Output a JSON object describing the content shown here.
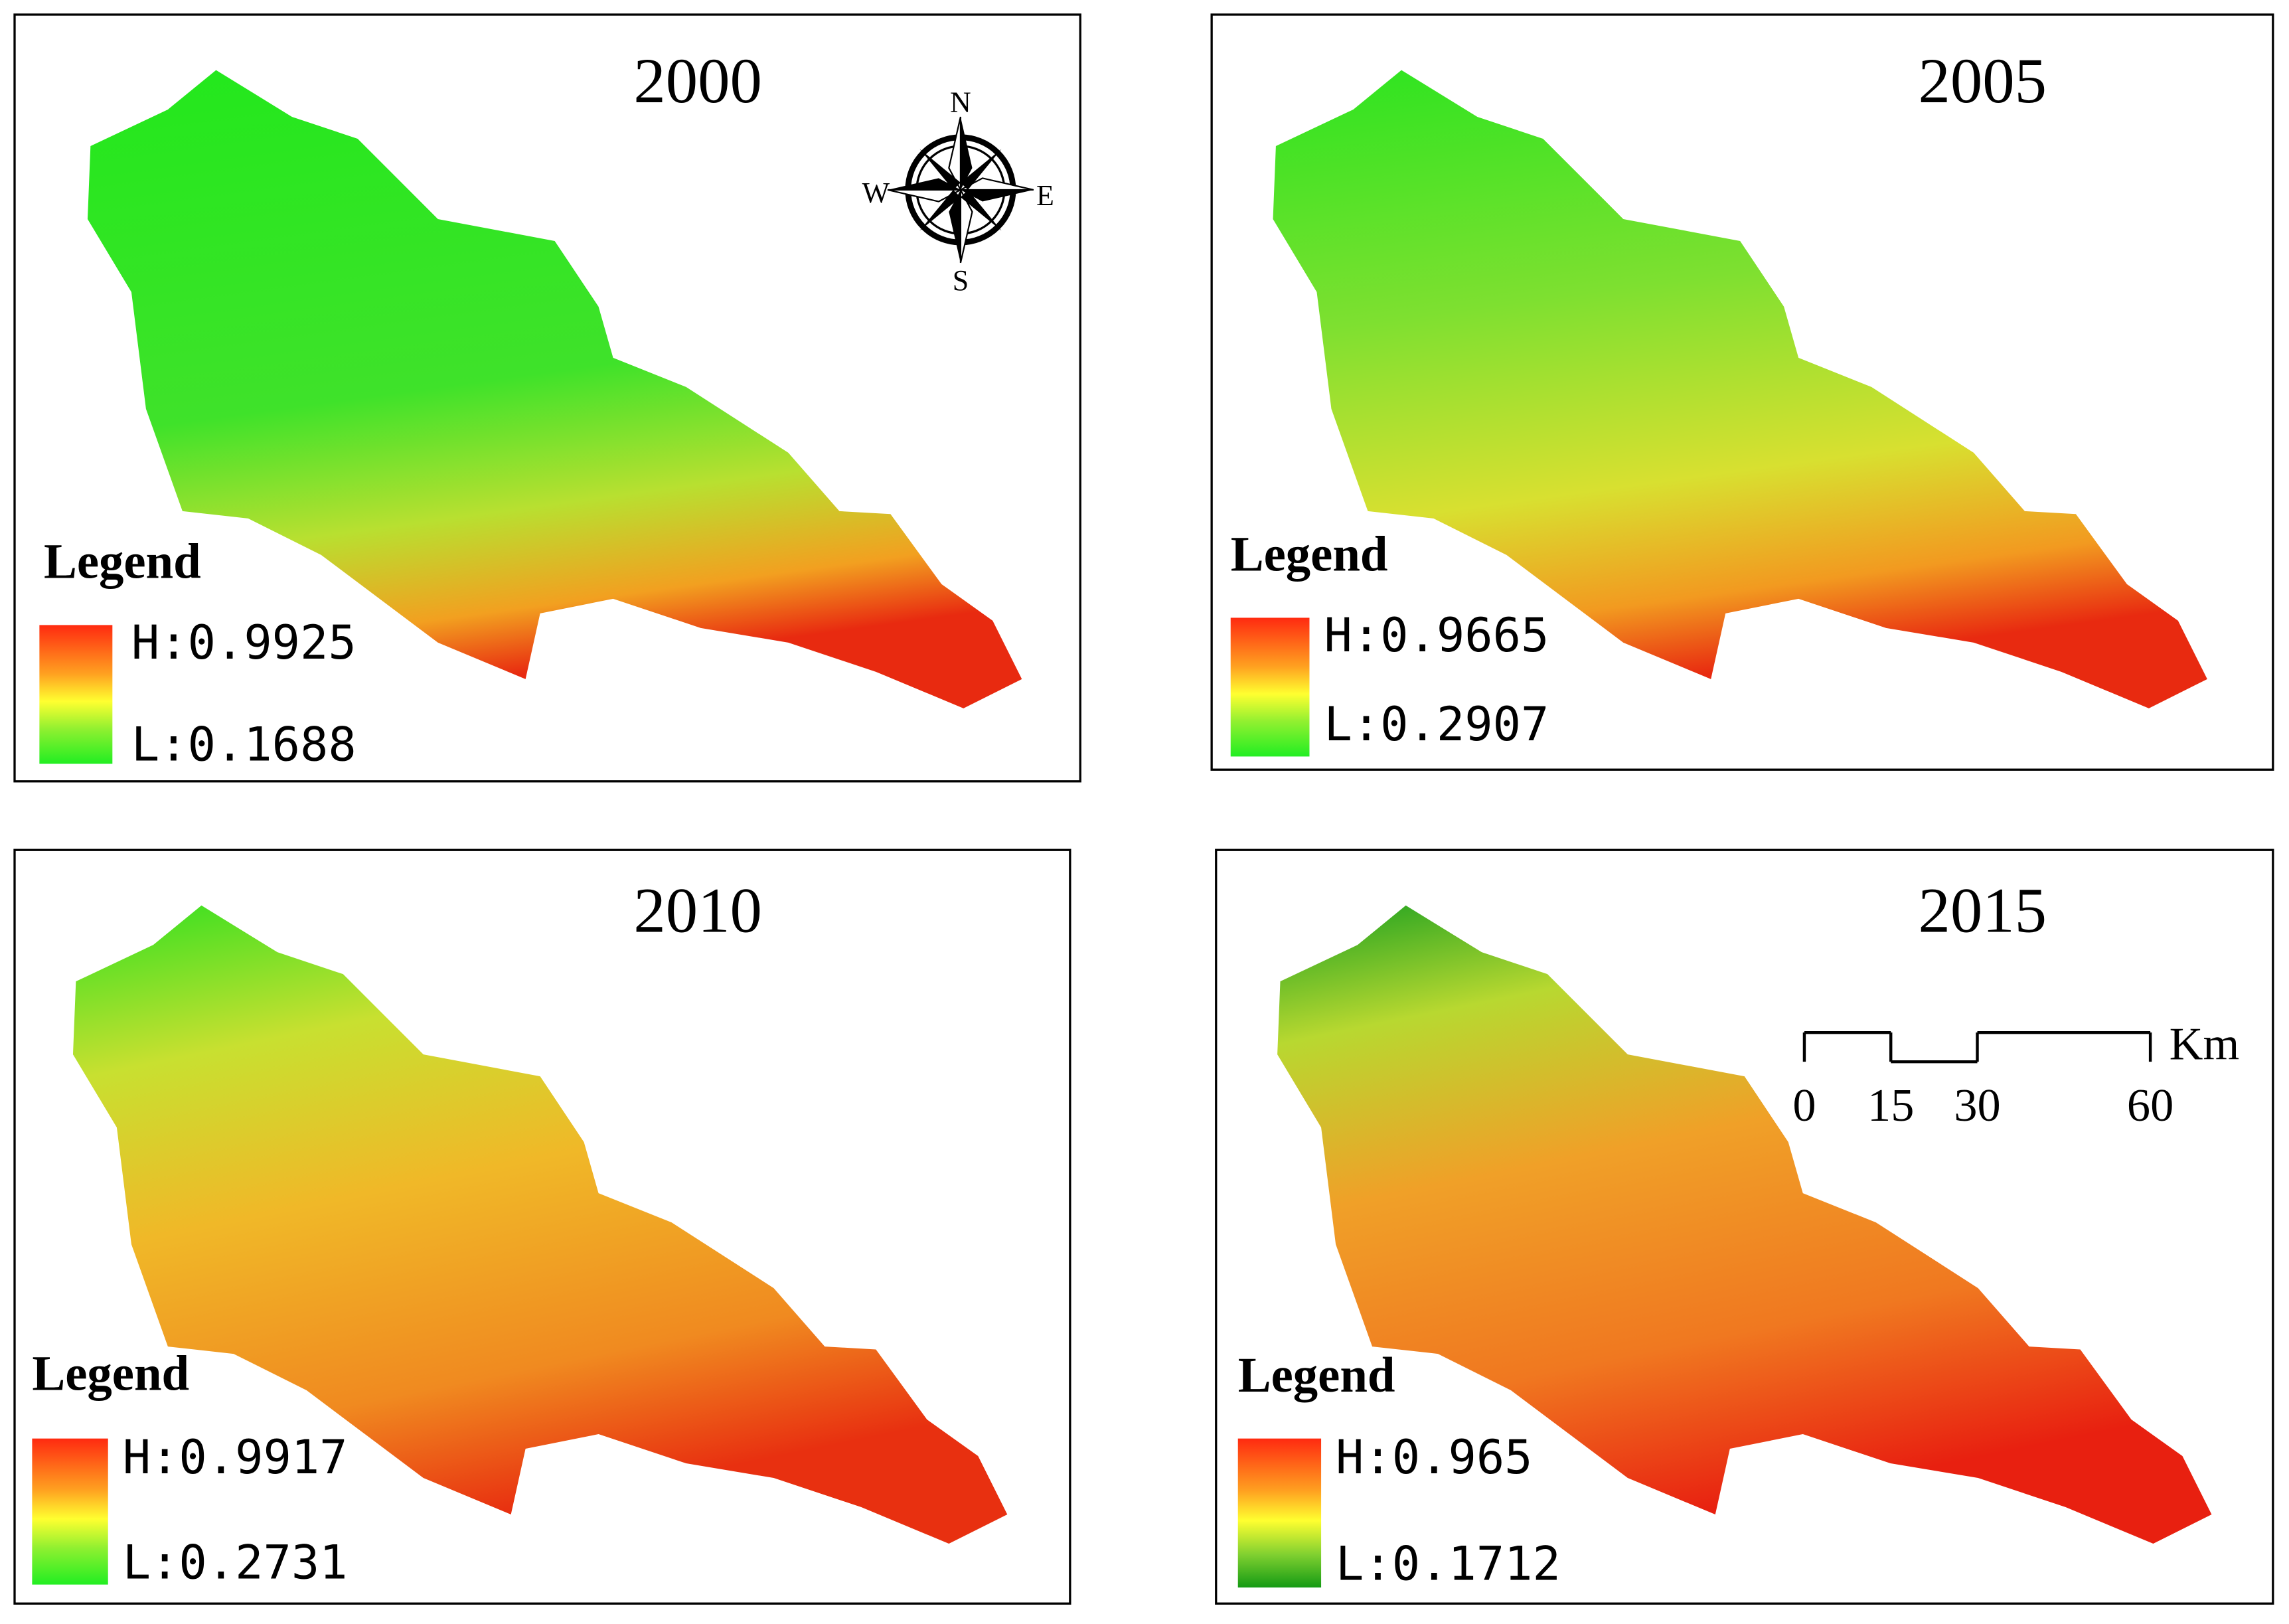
{
  "panels": [
    {
      "title": "2000",
      "legend_title": "Legend",
      "high_label": "H:0.9925",
      "low_label": "L:0.1688"
    },
    {
      "title": "2005",
      "legend_title": "Legend",
      "high_label": "H:0.9665",
      "low_label": "L:0.2907"
    },
    {
      "title": "2010",
      "legend_title": "Legend",
      "high_label": "H:0.9917",
      "low_label": "L:0.2731"
    },
    {
      "title": "2015",
      "legend_title": "Legend",
      "high_label": "H:0.965",
      "low_label": "L:0.1712"
    }
  ],
  "compass": {
    "north": "N",
    "south": "S",
    "east": "E",
    "west": "W"
  },
  "scale_bar": {
    "ticks": [
      0,
      15,
      30,
      60
    ],
    "unit": "Km"
  }
}
